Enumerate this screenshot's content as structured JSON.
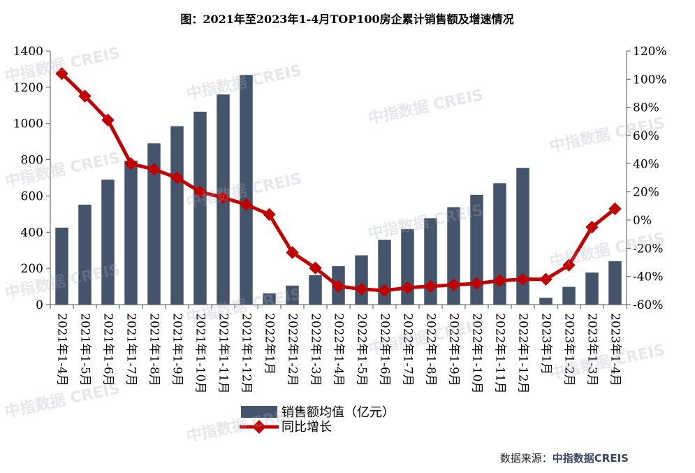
{
  "watermark": "中指数据 CREIS",
  "source": {
    "label": "数据来源：",
    "brand": "中指数据CREIS"
  },
  "colors": {
    "bar": "#44546a",
    "line": "#c00000",
    "axis": "#555555",
    "text": "#000000"
  },
  "chart_data": {
    "type": "bar",
    "title": "图：2021年至2023年1-4月TOP100房企累计销售额及增速情况",
    "categories": [
      "2021年1-4月",
      "2021年1-5月",
      "2021年1-6月",
      "2021年1-7月",
      "2021年1-8月",
      "2021年1-9月",
      "2021年1-10月",
      "2021年1-11月",
      "2021年1-12月",
      "2022年1月",
      "2022年1-2月",
      "2022年1-3月",
      "2022年1-4月",
      "2022年1-5月",
      "2022年1-6月",
      "2022年1-7月",
      "2022年1-8月",
      "2022年1-9月",
      "2022年1-10月",
      "2022年1-11月",
      "2022年1-12月",
      "2023年1月",
      "2023年1-2月",
      "2023年1-3月",
      "2023年1-4月"
    ],
    "series": [
      {
        "name": "销售额均值（亿元）",
        "type": "bar",
        "axis": "left",
        "values": [
          425,
          552,
          690,
          795,
          890,
          985,
          1065,
          1160,
          1268,
          62,
          105,
          162,
          212,
          272,
          358,
          417,
          477,
          538,
          606,
          670,
          755,
          38,
          98,
          177,
          240
        ]
      },
      {
        "name": "同比增长",
        "type": "line",
        "axis": "right",
        "unit": "%",
        "values": [
          104,
          88,
          71,
          40,
          36,
          30,
          20,
          16,
          11,
          4,
          -23,
          -34,
          -47,
          -49,
          -50,
          -48,
          -47,
          -46,
          -45,
          -43,
          -42,
          -42,
          -32,
          -5,
          8
        ]
      }
    ],
    "left_axis": {
      "ylim": [
        0,
        1400
      ],
      "ticks": [
        0,
        200,
        400,
        600,
        800,
        1000,
        1200,
        1400
      ]
    },
    "right_axis": {
      "ylim": [
        -60,
        120
      ],
      "ticks": [
        "-60%",
        "-40%",
        "-20%",
        "0%",
        "20%",
        "40%",
        "60%",
        "80%",
        "100%",
        "120%"
      ]
    },
    "legend": {
      "placement": "bottom-center",
      "bar_label": "销售额均值（亿元）",
      "line_label": "同比增长"
    }
  }
}
